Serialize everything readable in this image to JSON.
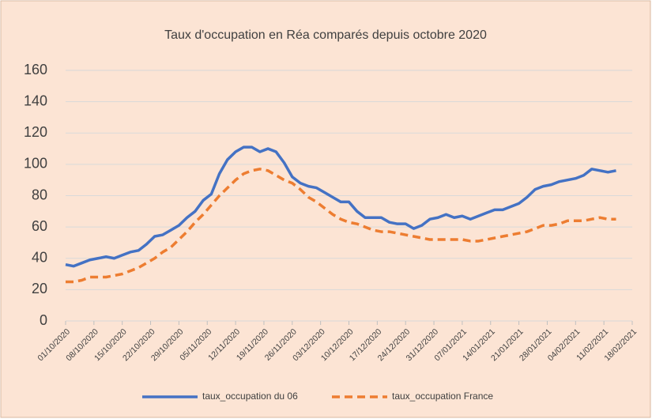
{
  "chart_data": {
    "type": "line",
    "title": "Taux d'occupation en Réa comparés depuis octobre 2020",
    "x": [
      "01/10/2020",
      "03/10/2020",
      "05/10/2020",
      "07/10/2020",
      "09/10/2020",
      "11/10/2020",
      "13/10/2020",
      "15/10/2020",
      "17/10/2020",
      "19/10/2020",
      "21/10/2020",
      "23/10/2020",
      "25/10/2020",
      "27/10/2020",
      "29/10/2020",
      "31/10/2020",
      "02/11/2020",
      "04/11/2020",
      "06/11/2020",
      "08/11/2020",
      "10/11/2020",
      "12/11/2020",
      "14/11/2020",
      "16/11/2020",
      "18/11/2020",
      "20/11/2020",
      "22/11/2020",
      "24/11/2020",
      "26/11/2020",
      "28/11/2020",
      "30/11/2020",
      "02/12/2020",
      "04/12/2020",
      "06/12/2020",
      "08/12/2020",
      "10/12/2020",
      "12/12/2020",
      "14/12/2020",
      "16/12/2020",
      "18/12/2020",
      "20/12/2020",
      "22/12/2020",
      "24/12/2020",
      "26/12/2020",
      "28/12/2020",
      "30/12/2020",
      "01/01/2021",
      "03/01/2021",
      "05/01/2021",
      "07/01/2021",
      "09/01/2021",
      "11/01/2021",
      "13/01/2021",
      "15/01/2021",
      "17/01/2021",
      "19/01/2021",
      "21/01/2021",
      "23/01/2021",
      "25/01/2021",
      "27/01/2021",
      "29/01/2021",
      "31/01/2021",
      "02/02/2021",
      "04/02/2021",
      "06/02/2021",
      "08/02/2021",
      "10/02/2021",
      "12/02/2021",
      "14/02/2021"
    ],
    "series": [
      {
        "name": "taux_occupation du 06",
        "color": "#4472c4",
        "dash": false,
        "values": [
          36,
          35,
          37,
          39,
          40,
          41,
          40,
          42,
          44,
          45,
          49,
          54,
          55,
          58,
          61,
          66,
          70,
          77,
          81,
          94,
          103,
          108,
          111,
          111,
          108,
          110,
          108,
          101,
          92,
          88,
          86,
          85,
          82,
          79,
          76,
          76,
          70,
          66,
          66,
          66,
          63,
          62,
          62,
          59,
          61,
          65,
          66,
          68,
          66,
          67,
          65,
          67,
          69,
          71,
          71,
          73,
          75,
          79,
          84,
          86,
          87,
          89,
          90,
          91,
          93,
          97,
          96,
          95,
          96
        ]
      },
      {
        "name": "taux_occupation France",
        "color": "#ed7d31",
        "dash": true,
        "values": [
          25,
          25,
          26,
          28,
          28,
          28,
          29,
          30,
          32,
          34,
          37,
          40,
          44,
          47,
          52,
          57,
          63,
          68,
          74,
          80,
          85,
          90,
          94,
          96,
          97,
          96,
          93,
          90,
          88,
          84,
          79,
          76,
          72,
          68,
          65,
          63,
          62,
          60,
          58,
          57,
          57,
          56,
          55,
          54,
          53,
          52,
          52,
          52,
          52,
          52,
          51,
          51,
          52,
          53,
          54,
          55,
          56,
          57,
          59,
          61,
          61,
          62,
          64,
          64,
          64,
          65,
          66,
          65,
          65
        ]
      }
    ],
    "xlim": [
      "01/10/2020",
      "18/02/2021"
    ],
    "xticks": [
      "01/10/2020",
      "08/10/2020",
      "15/10/2020",
      "22/10/2020",
      "29/10/2020",
      "05/11/2020",
      "12/11/2020",
      "19/11/2020",
      "26/11/2020",
      "03/12/2020",
      "10/12/2020",
      "17/12/2020",
      "24/12/2020",
      "31/12/2020",
      "07/01/2021",
      "14/01/2021",
      "21/01/2021",
      "28/01/2021",
      "04/02/2021",
      "11/02/2021",
      "18/02/2021"
    ],
    "ylim": [
      0,
      160
    ],
    "yticks": [
      0,
      20,
      40,
      60,
      80,
      100,
      120,
      140,
      160
    ],
    "grid": true,
    "legend": "bottom"
  }
}
